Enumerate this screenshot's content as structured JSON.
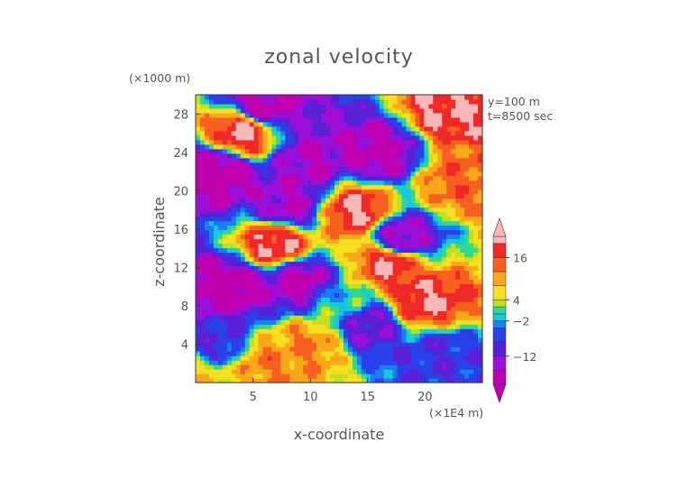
{
  "chart_data": {
    "type": "heatmap",
    "title": "zonal velocity",
    "xlabel": "x-coordinate",
    "ylabel": "z-coordinate",
    "x_unit": "(×1E4 m)",
    "y_unit": "(×1000 m)",
    "annotations": [
      "y=100 m",
      "t=8500 sec"
    ],
    "xlim": [
      0,
      25
    ],
    "ylim": [
      0,
      30
    ],
    "x_ticks": [
      5,
      10,
      15,
      20
    ],
    "y_ticks": [
      4,
      8,
      12,
      16,
      20,
      24,
      28
    ],
    "colorbar": {
      "tick_labels": [
        "16",
        "4",
        "−2",
        "−12"
      ],
      "tick_values": [
        16,
        4,
        -2,
        -12
      ],
      "range": [
        -20,
        22
      ],
      "levels": [
        {
          "v": -20,
          "color": "#c000b0"
        },
        {
          "v": -16,
          "color": "#9a10d8"
        },
        {
          "v": -12,
          "color": "#5a20d8"
        },
        {
          "v": -8,
          "color": "#2a40e8"
        },
        {
          "v": -4,
          "color": "#1a7df0"
        },
        {
          "v": -2,
          "color": "#15c8e0"
        },
        {
          "v": 0,
          "color": "#30d890"
        },
        {
          "v": 2,
          "color": "#c0e020"
        },
        {
          "v": 4,
          "color": "#f8e020"
        },
        {
          "v": 8,
          "color": "#f8a818"
        },
        {
          "v": 12,
          "color": "#f86020"
        },
        {
          "v": 16,
          "color": "#f02828"
        },
        {
          "v": 20,
          "color": "#f8b8b8"
        }
      ]
    },
    "field_features": [
      {
        "x": 7,
        "z": 14.5,
        "v": 20
      },
      {
        "x": 17,
        "z": 12.5,
        "v": 20
      },
      {
        "x": 20,
        "z": 8.5,
        "v": 20
      },
      {
        "x": 4,
        "z": 26,
        "v": 20
      },
      {
        "x": 22,
        "z": 28.5,
        "v": 20
      },
      {
        "x": 14,
        "z": 18,
        "v": 20
      },
      {
        "x": 18,
        "z": 15,
        "v": -16
      },
      {
        "x": 8,
        "z": 18.5,
        "v": -16
      },
      {
        "x": 2,
        "z": 22,
        "v": -20
      },
      {
        "x": 10,
        "z": 23,
        "v": -16
      },
      {
        "x": 16,
        "z": 24,
        "v": -18
      },
      {
        "x": 3,
        "z": 10,
        "v": -20
      },
      {
        "x": 9,
        "z": 10.5,
        "v": -18
      },
      {
        "x": 15,
        "z": 6,
        "v": -12
      },
      {
        "x": 21,
        "z": 3,
        "v": -8
      },
      {
        "x": 2,
        "z": 4,
        "v": -8
      },
      {
        "x": 10,
        "z": 4,
        "v": 12
      },
      {
        "x": 6,
        "z": 2,
        "v": 12
      },
      {
        "x": 1,
        "z": 0.5,
        "v": 6
      },
      {
        "x": 12.5,
        "z": 8,
        "v": 0
      },
      {
        "x": 23,
        "z": 21,
        "v": 14
      },
      {
        "x": 6,
        "z": 29,
        "v": -18
      }
    ]
  }
}
